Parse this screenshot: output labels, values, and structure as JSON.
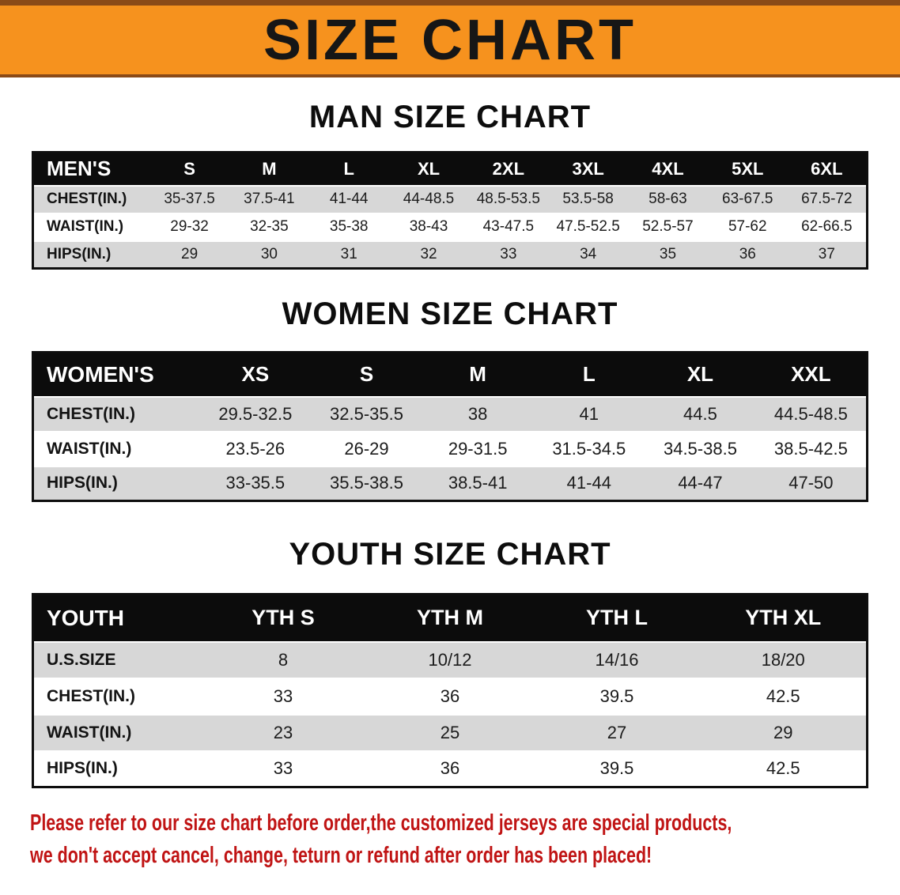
{
  "colors": {
    "banner-bg": "#f6921e",
    "banner-edge": "#8a4a17",
    "banner-text": "#161616",
    "table-header-bg": "#0c0c0c",
    "table-header-text": "#ffffff",
    "row-stripe": "#d7d7d7",
    "note-text": "#c01414"
  },
  "banner": {
    "title": "SIZE CHART"
  },
  "sections": [
    {
      "heading": "MAN SIZE CHART",
      "table": {
        "header": [
          "MEN'S",
          "S",
          "M",
          "L",
          "XL",
          "2XL",
          "3XL",
          "4XL",
          "5XL",
          "6XL"
        ],
        "rows": [
          [
            "CHEST(IN.)",
            "35-37.5",
            "37.5-41",
            "41-44",
            "44-48.5",
            "48.5-53.5",
            "53.5-58",
            "58-63",
            "63-67.5",
            "67.5-72"
          ],
          [
            "WAIST(IN.)",
            "29-32",
            "32-35",
            "35-38",
            "38-43",
            "43-47.5",
            "47.5-52.5",
            "52.5-57",
            "57-62",
            "62-66.5"
          ],
          [
            "HIPS(IN.)",
            "29",
            "30",
            "31",
            "32",
            "33",
            "34",
            "35",
            "36",
            "37"
          ]
        ]
      }
    },
    {
      "heading": "WOMEN SIZE CHART",
      "table": {
        "header": [
          "WOMEN'S",
          "XS",
          "S",
          "M",
          "L",
          "XL",
          "XXL"
        ],
        "rows": [
          [
            "CHEST(IN.)",
            "29.5-32.5",
            "32.5-35.5",
            "38",
            "41",
            "44.5",
            "44.5-48.5"
          ],
          [
            "WAIST(IN.)",
            "23.5-26",
            "26-29",
            "29-31.5",
            "31.5-34.5",
            "34.5-38.5",
            "38.5-42.5"
          ],
          [
            "HIPS(IN.)",
            "33-35.5",
            "35.5-38.5",
            "38.5-41",
            "41-44",
            "44-47",
            "47-50"
          ]
        ]
      }
    },
    {
      "heading": "YOUTH SIZE CHART",
      "table": {
        "header": [
          "YOUTH",
          "YTH S",
          "YTH M",
          "YTH L",
          "YTH XL"
        ],
        "rows": [
          [
            "U.S.SIZE",
            "8",
            "10/12",
            "14/16",
            "18/20"
          ],
          [
            "CHEST(IN.)",
            "33",
            "36",
            "39.5",
            "42.5"
          ],
          [
            "WAIST(IN.)",
            "23",
            "25",
            "27",
            "29"
          ],
          [
            "HIPS(IN.)",
            "33",
            "36",
            "39.5",
            "42.5"
          ]
        ]
      }
    }
  ],
  "note": {
    "lines": [
      "Please refer to our size chart before order,the customized jerseys are special products,",
      "we don't accept cancel, change, teturn or refund after order has been placed!"
    ]
  }
}
